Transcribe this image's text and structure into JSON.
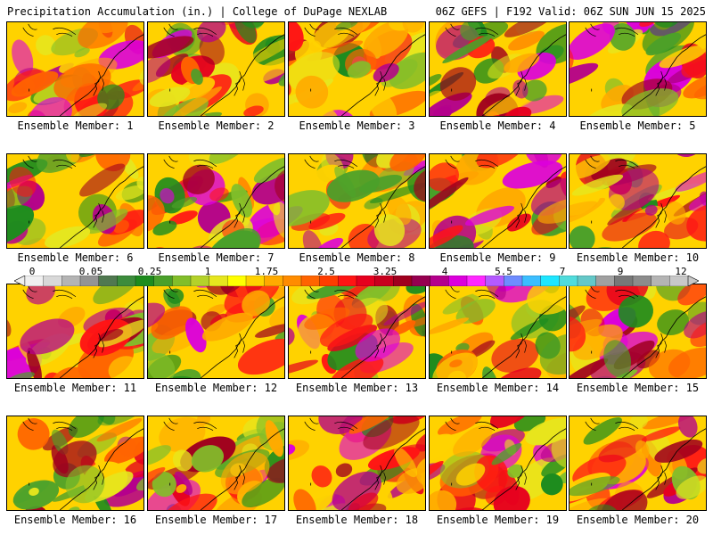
{
  "header": {
    "title": "Precipitation Accumulation (in.) | College of DuPage NEXLAB",
    "run_info": "06Z GEFS | F192 Valid: 06Z SUN JUN 15 2025"
  },
  "legend": {
    "labels": [
      "0",
      "0.05",
      "0.25",
      "1",
      "1.75",
      "2.5",
      "3.25",
      "4",
      "5.5",
      "7",
      "9",
      "12"
    ],
    "colors": [
      "#f0f0f0",
      "#d8d8d8",
      "#b4b4b4",
      "#949494",
      "#507850",
      "#3c8c3c",
      "#1e8c1e",
      "#4aa02a",
      "#82be2a",
      "#b4d22a",
      "#e6e61e",
      "#ffff00",
      "#ffd200",
      "#ffaa00",
      "#ff8c00",
      "#ff6400",
      "#ff3c00",
      "#ff1414",
      "#e6001e",
      "#c8001e",
      "#a0001e",
      "#960050",
      "#b4008c",
      "#dc00dc",
      "#ff28ff",
      "#b45aff",
      "#6e8cff",
      "#3cbeff",
      "#1ee6ff",
      "#50dcdc",
      "#64c8c8",
      "#a0a0a0",
      "#787878",
      "#8c8c8c",
      "#b4b4b4",
      "#c8c8c8"
    ]
  },
  "members": [
    {
      "label": "Ensemble Member: 1"
    },
    {
      "label": "Ensemble Member: 2"
    },
    {
      "label": "Ensemble Member: 3"
    },
    {
      "label": "Ensemble Member: 4"
    },
    {
      "label": "Ensemble Member: 5"
    },
    {
      "label": "Ensemble Member: 6"
    },
    {
      "label": "Ensemble Member: 7"
    },
    {
      "label": "Ensemble Member: 8"
    },
    {
      "label": "Ensemble Member: 9"
    },
    {
      "label": "Ensemble Member: 10"
    },
    {
      "label": "Ensemble Member: 11"
    },
    {
      "label": "Ensemble Member: 12"
    },
    {
      "label": "Ensemble Member: 13"
    },
    {
      "label": "Ensemble Member: 14"
    },
    {
      "label": "Ensemble Member: 15"
    },
    {
      "label": "Ensemble Member: 16"
    },
    {
      "label": "Ensemble Member: 17"
    },
    {
      "label": "Ensemble Member: 18"
    },
    {
      "label": "Ensemble Member: 19"
    },
    {
      "label": "Ensemble Member: 20"
    }
  ]
}
